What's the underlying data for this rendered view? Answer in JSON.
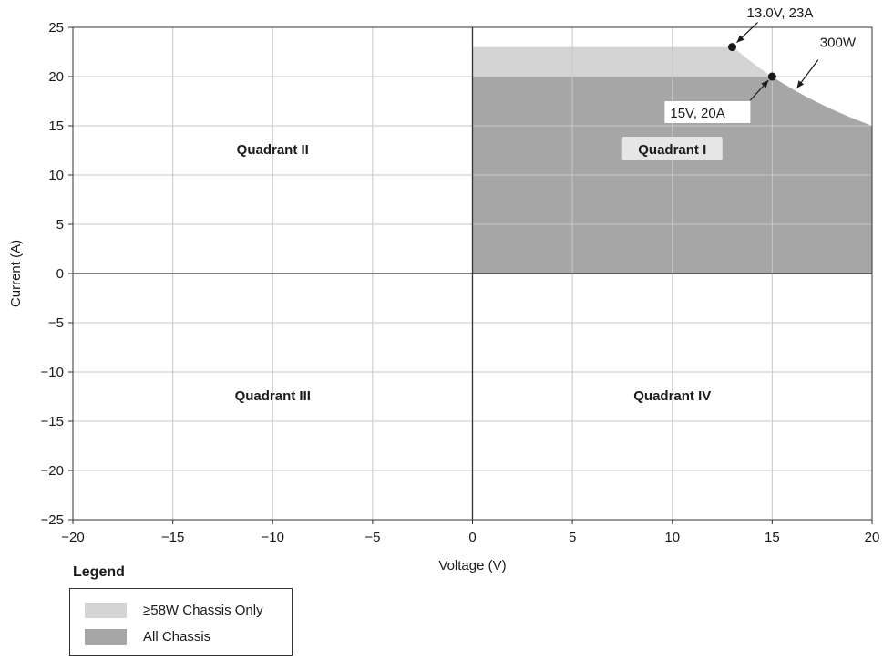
{
  "chart_data": {
    "type": "area",
    "xlabel": "Voltage (V)",
    "ylabel": "Current (A)",
    "xlim": [
      -20,
      20
    ],
    "ylim": [
      -25,
      25
    ],
    "xticks": [
      -20,
      -15,
      -10,
      -5,
      0,
      5,
      10,
      15,
      20
    ],
    "yticks": [
      25,
      20,
      15,
      10,
      5,
      0,
      -5,
      -10,
      -15,
      -20,
      -25
    ],
    "xtick_labels": [
      "−20",
      "−15",
      "−10",
      "−5",
      "0",
      "5",
      "10",
      "15",
      "20"
    ],
    "ytick_labels": [
      "25",
      "20",
      "15",
      "10",
      "5",
      "0",
      "−5",
      "−10",
      "−15",
      "−20",
      "−25"
    ],
    "grid": true,
    "series": [
      {
        "name": "≥58W Chassis Only",
        "color": "#d4d4d4",
        "region": "V from 0 to 13.0 at I = 23, then power limit 300W curve to V = 20"
      },
      {
        "name": "All Chassis",
        "color": "#a6a6a6",
        "region": "V from 0 to 15 at I = 20, then power limit 300W curve to V = 20"
      }
    ],
    "power_limit_w": 300,
    "points": [
      {
        "x": 13.0,
        "y": 23,
        "label": "13.0V, 23A"
      },
      {
        "x": 15,
        "y": 20,
        "label": "15V, 20A"
      }
    ],
    "annotations": [
      {
        "text": "300W",
        "x": 17.3,
        "y": 21.7
      }
    ],
    "quadrant_labels": [
      {
        "text": "Quadrant II",
        "x": -10,
        "y": 12.5
      },
      {
        "text": "Quadrant I",
        "x": 10,
        "y": 12.5
      },
      {
        "text": "Quadrant III",
        "x": -10,
        "y": -12.5
      },
      {
        "text": "Quadrant IV",
        "x": 10,
        "y": -12.5
      }
    ]
  },
  "legend": {
    "title": "Legend",
    "items": [
      {
        "label": "≥58W Chassis Only",
        "color": "#d4d4d4"
      },
      {
        "label": "All Chassis",
        "color": "#a6a6a6"
      }
    ]
  }
}
